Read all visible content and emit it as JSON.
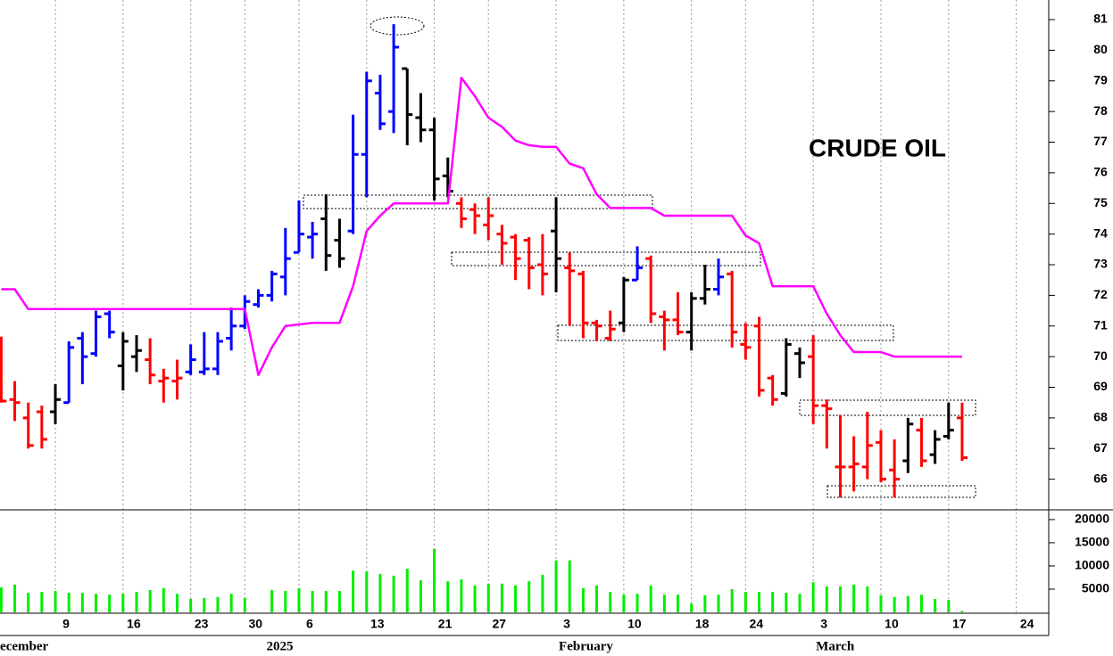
{
  "chart_data": {
    "type": "ohlc",
    "title": "CRUDE OIL",
    "x": [
      0,
      1,
      2,
      3,
      4,
      5,
      6,
      7,
      8,
      9,
      10,
      11,
      12,
      13,
      14,
      15,
      16,
      17,
      18,
      19,
      20,
      21,
      22,
      23,
      24,
      25,
      26,
      27,
      28,
      29,
      30,
      31,
      32,
      33,
      34,
      35,
      36,
      37,
      38,
      39,
      40,
      41,
      42,
      43,
      44,
      45,
      46,
      47,
      48,
      49,
      50,
      51,
      52,
      53,
      54,
      55,
      56,
      57,
      58,
      59,
      60,
      61,
      62,
      63,
      64,
      65,
      66,
      67,
      68,
      69,
      70,
      71
    ],
    "open": [
      70.0,
      68.6,
      68.0,
      68.2,
      68.2,
      68.5,
      70.6,
      70.1,
      71.4,
      69.7,
      70.0,
      69.9,
      69.2,
      69.2,
      69.5,
      69.5,
      69.6,
      70.6,
      71.0,
      71.7,
      72.0,
      72.6,
      73.4,
      73.9,
      74.5,
      73.8,
      74.1,
      76.6,
      78.6,
      78.0,
      79.4,
      77.8,
      77.4,
      75.9,
      75.0,
      74.8,
      74.3,
      74.0,
      73.9,
      73.8,
      73.0,
      74.1,
      72.9,
      72.7,
      71.1,
      70.6,
      71.1,
      72.5,
      73.2,
      71.3,
      71.2,
      70.8,
      71.9,
      72.2,
      72.7,
      70.4,
      71.0,
      69.3,
      68.8,
      70.1,
      70.0,
      68.4,
      66.4,
      66.4,
      66.4,
      67.2,
      66.3,
      66.6,
      67.6,
      66.8,
      67.4,
      68.0
    ],
    "high": [
      70.65,
      69.2,
      68.5,
      68.4,
      69.1,
      70.5,
      70.8,
      71.5,
      71.5,
      70.8,
      70.7,
      70.6,
      69.6,
      69.9,
      70.4,
      70.8,
      70.8,
      71.6,
      72.0,
      72.2,
      72.8,
      74.2,
      75.1,
      74.4,
      75.3,
      74.5,
      77.9,
      79.3,
      79.2,
      80.85,
      79.4,
      78.6,
      77.8,
      76.5,
      75.2,
      75.0,
      75.2,
      74.3,
      74.0,
      73.9,
      74.0,
      75.2,
      73.4,
      72.8,
      71.2,
      71.5,
      72.6,
      73.6,
      73.3,
      71.5,
      72.1,
      72.1,
      73.0,
      73.2,
      72.8,
      71.1,
      71.3,
      69.4,
      70.6,
      70.3,
      70.7,
      68.6,
      68.1,
      67.4,
      68.2,
      67.6,
      67.3,
      68.0,
      68.0,
      67.6,
      68.5,
      68.5
    ],
    "low": [
      68.5,
      67.9,
      67.0,
      67.0,
      67.8,
      68.5,
      69.1,
      70.0,
      70.6,
      68.9,
      69.5,
      69.1,
      68.5,
      68.6,
      69.4,
      69.4,
      69.4,
      70.2,
      70.9,
      71.6,
      71.8,
      72.0,
      73.4,
      73.2,
      72.8,
      72.9,
      74.0,
      75.2,
      77.4,
      77.3,
      76.9,
      77.0,
      75.1,
      75.2,
      74.2,
      74.0,
      73.8,
      73.0,
      72.5,
      72.2,
      72.0,
      72.1,
      71.0,
      70.6,
      70.5,
      70.5,
      70.8,
      72.5,
      71.1,
      70.2,
      70.7,
      70.2,
      71.7,
      72.0,
      70.3,
      69.9,
      68.7,
      68.4,
      68.7,
      69.3,
      67.8,
      67.0,
      65.4,
      65.6,
      66.0,
      65.9,
      65.4,
      66.2,
      66.4,
      66.5,
      67.3,
      66.6
    ],
    "close": [
      68.55,
      68.5,
      67.1,
      67.3,
      68.6,
      70.3,
      70.0,
      71.3,
      70.8,
      70.5,
      70.2,
      69.4,
      69.3,
      69.3,
      69.9,
      69.6,
      70.5,
      71.0,
      71.8,
      72.0,
      72.7,
      73.2,
      74.0,
      74.0,
      73.3,
      73.2,
      76.6,
      79.0,
      77.6,
      80.1,
      77.9,
      77.4,
      75.8,
      75.4,
      74.5,
      74.6,
      74.6,
      73.7,
      73.2,
      72.9,
      72.7,
      73.2,
      72.8,
      71.1,
      71.0,
      70.9,
      72.5,
      72.9,
      71.4,
      71.2,
      70.8,
      71.9,
      72.2,
      72.6,
      70.8,
      70.3,
      68.9,
      68.6,
      70.4,
      69.8,
      68.4,
      68.3,
      66.4,
      66.5,
      67.1,
      66.0,
      66.0,
      67.8,
      66.6,
      67.3,
      67.6,
      66.7
    ],
    "colors": [
      "#ff0000",
      "#ff0000",
      "#ff0000",
      "#ff0000",
      "#000000",
      "#0000ff",
      "#0000ff",
      "#0000ff",
      "#0000ff",
      "#000000",
      "#000000",
      "#ff0000",
      "#ff0000",
      "#ff0000",
      "#0000ff",
      "#0000ff",
      "#0000ff",
      "#0000ff",
      "#0000ff",
      "#0000ff",
      "#0000ff",
      "#0000ff",
      "#0000ff",
      "#0000ff",
      "#000000",
      "#000000",
      "#0000ff",
      "#0000ff",
      "#0000ff",
      "#0000ff",
      "#000000",
      "#000000",
      "#000000",
      "#000000",
      "#ff0000",
      "#ff0000",
      "#ff0000",
      "#ff0000",
      "#ff0000",
      "#ff0000",
      "#ff0000",
      "#000000",
      "#ff0000",
      "#ff0000",
      "#ff0000",
      "#ff0000",
      "#000000",
      "#0000ff",
      "#ff0000",
      "#ff0000",
      "#ff0000",
      "#000000",
      "#000000",
      "#0000ff",
      "#ff0000",
      "#ff0000",
      "#ff0000",
      "#ff0000",
      "#000000",
      "#000000",
      "#ff0000",
      "#ff0000",
      "#ff0000",
      "#ff0000",
      "#ff0000",
      "#ff0000",
      "#ff0000",
      "#000000",
      "#ff0000",
      "#000000",
      "#000000",
      "#ff0000"
    ],
    "line": {
      "color": "#ff00ff",
      "values": [
        72.2,
        72.2,
        71.55,
        71.55,
        71.55,
        71.55,
        71.55,
        71.55,
        71.55,
        71.55,
        71.55,
        71.55,
        71.55,
        71.55,
        71.55,
        71.55,
        71.55,
        71.55,
        71.55,
        69.4,
        70.3,
        71.0,
        71.05,
        71.1,
        71.1,
        71.1,
        72.3,
        74.1,
        74.6,
        75.0,
        75.0,
        75.0,
        75.0,
        75.0,
        79.1,
        78.5,
        77.8,
        77.5,
        77.05,
        76.9,
        76.85,
        76.85,
        76.3,
        76.15,
        75.3,
        74.85,
        74.85,
        74.85,
        74.85,
        74.6,
        74.6,
        74.6,
        74.6,
        74.6,
        74.6,
        73.95,
        73.7,
        72.3,
        72.3,
        72.3,
        72.3,
        71.4,
        70.7,
        70.15,
        70.15,
        70.15,
        70.0,
        70.0,
        70.0,
        70.0,
        70.0,
        70.0
      ]
    },
    "volume": {
      "color": "#00ee00",
      "values": [
        5400,
        6000,
        4200,
        4400,
        4600,
        4200,
        4200,
        4000,
        3800,
        4000,
        4400,
        4800,
        5200,
        4000,
        2900,
        3100,
        3300,
        4000,
        3100,
        null,
        4800,
        4600,
        5200,
        4600,
        4600,
        4600,
        9000,
        8800,
        8300,
        7900,
        9400,
        6900,
        13700,
        6700,
        7100,
        5800,
        6200,
        6200,
        5800,
        6700,
        8100,
        11200,
        11200,
        5200,
        5800,
        4400,
        3800,
        4000,
        5800,
        3800,
        3800,
        1900,
        3700,
        3800,
        5000,
        4400,
        4400,
        4400,
        4200,
        4000,
        6500,
        5600,
        5600,
        6000,
        5600,
        3700,
        3300,
        3500,
        3800,
        2900,
        2700,
        300
      ],
      "ylim": [
        0,
        22100
      ],
      "yticks": [
        5000,
        10000,
        15000,
        20000
      ]
    },
    "ylim": [
      65.0,
      81.64
    ],
    "yticks": [
      66,
      67,
      68,
      69,
      70,
      71,
      72,
      73,
      74,
      75,
      76,
      77,
      78,
      79,
      80,
      81
    ],
    "xlim": [
      -0.09,
      77.4
    ],
    "xticks": [
      {
        "value": 4,
        "label": "9"
      },
      {
        "value": 9,
        "label": "16"
      },
      {
        "value": 14,
        "label": "23"
      },
      {
        "value": 18,
        "label": "30"
      },
      {
        "value": 22,
        "label": "6"
      },
      {
        "value": 27,
        "label": "13"
      },
      {
        "value": 32,
        "label": "21"
      },
      {
        "value": 36,
        "label": "27"
      },
      {
        "value": 41,
        "label": "3"
      },
      {
        "value": 46,
        "label": "10"
      },
      {
        "value": 51,
        "label": "18"
      },
      {
        "value": 55,
        "label": "24"
      },
      {
        "value": 60,
        "label": "3"
      },
      {
        "value": 65,
        "label": "10"
      },
      {
        "value": 70,
        "label": "17"
      },
      {
        "value": 75,
        "label": "24"
      }
    ],
    "month_labels": [
      {
        "value": -1,
        "label": "December"
      },
      {
        "value": 19.4,
        "label": "2025"
      },
      {
        "value": 41,
        "label": "February"
      },
      {
        "value": 60,
        "label": "March"
      }
    ],
    "grid": true
  }
}
